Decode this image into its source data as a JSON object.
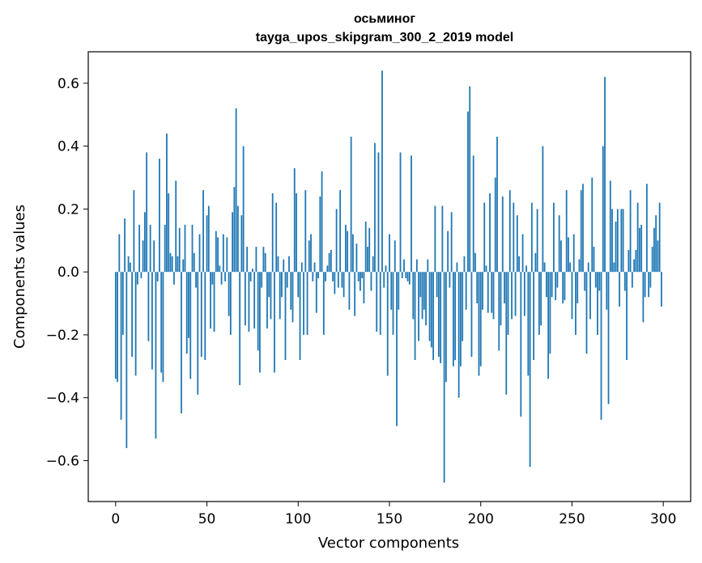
{
  "chart_data": {
    "type": "bar",
    "title": "осьминог",
    "subtitle": "tayga_upos_skipgram_300_2_2019 model",
    "xlabel": "Vector components",
    "ylabel": "Components values",
    "xlim": [
      -15,
      315
    ],
    "ylim": [
      -0.73,
      0.7
    ],
    "xticks": [
      0,
      50,
      100,
      150,
      200,
      250,
      300
    ],
    "xtick_labels": [
      "0",
      "50",
      "100",
      "150",
      "200",
      "250",
      "300"
    ],
    "yticks": [
      -0.6,
      -0.4,
      -0.2,
      0.0,
      0.2,
      0.4,
      0.6
    ],
    "ytick_labels": [
      "−0.6",
      "−0.4",
      "−0.2",
      "0.0",
      "0.2",
      "0.4",
      "0.6"
    ],
    "grid": false,
    "bar_color": "#1f77b4",
    "values": [
      -0.34,
      -0.35,
      0.12,
      -0.47,
      -0.2,
      0.17,
      -0.56,
      0.05,
      0.03,
      -0.27,
      0.26,
      -0.33,
      -0.04,
      0.15,
      -0.02,
      0.1,
      0.19,
      0.38,
      -0.22,
      0.15,
      -0.31,
      0.1,
      -0.53,
      -0.03,
      0.36,
      -0.32,
      -0.35,
      0.15,
      0.44,
      0.25,
      0.06,
      0.05,
      -0.04,
      0.29,
      0.05,
      0.14,
      -0.45,
      0.04,
      0.15,
      -0.26,
      -0.21,
      -0.34,
      0.15,
      0.06,
      -0.05,
      -0.39,
      0.12,
      -0.27,
      0.26,
      -0.28,
      0.18,
      0.21,
      -0.18,
      -0.04,
      -0.19,
      0.13,
      0.11,
      0.02,
      -0.04,
      0.12,
      -0.03,
      0.11,
      -0.14,
      -0.2,
      0.19,
      0.27,
      0.52,
      0.21,
      -0.36,
      0.18,
      0.4,
      -0.17,
      0.08,
      -0.19,
      -0.03,
      0.01,
      -0.18,
      0.08,
      -0.25,
      -0.32,
      -0.05,
      0.08,
      0.06,
      -0.18,
      -0.08,
      -0.15,
      0.25,
      -0.32,
      0.22,
      0.05,
      -0.15,
      -0.08,
      0.04,
      -0.28,
      -0.05,
      0.05,
      -0.12,
      -0.16,
      0.33,
      0.25,
      -0.08,
      -0.28,
      0.03,
      -0.2,
      0.26,
      -0.2,
      0.1,
      0.12,
      -0.03,
      0.03,
      -0.13,
      -0.02,
      0.24,
      0.32,
      -0.2,
      -0.03,
      0.02,
      0.06,
      0.07,
      -0.03,
      -0.07,
      0.2,
      -0.05,
      0.26,
      -0.05,
      -0.08,
      0.15,
      0.13,
      -0.12,
      0.43,
      0.12,
      -0.14,
      0.09,
      -0.03,
      -0.06,
      -0.02,
      -0.1,
      0.16,
      0.08,
      0.14,
      -0.06,
      0.05,
      0.41,
      -0.19,
      0.38,
      -0.2,
      0.64,
      -0.05,
      0.02,
      -0.33,
      0.12,
      -0.12,
      -0.2,
      0.1,
      -0.49,
      -0.12,
      0.38,
      -0.02,
      0.04,
      -0.02,
      -0.03,
      -0.04,
      0.37,
      -0.15,
      -0.28,
      0.04,
      -0.22,
      -0.08,
      -0.15,
      -0.12,
      -0.17,
      0.04,
      -0.22,
      -0.24,
      -0.28,
      0.21,
      -0.08,
      -0.27,
      -0.29,
      0.21,
      -0.67,
      -0.35,
      0.13,
      -0.05,
      0.19,
      -0.3,
      -0.28,
      0.03,
      -0.4,
      -0.3,
      -0.22,
      0.05,
      -0.12,
      0.51,
      0.59,
      -0.27,
      0.37,
      0.06,
      -0.1,
      -0.33,
      -0.3,
      -0.12,
      0.22,
      0.02,
      -0.13,
      0.25,
      -0.13,
      -0.15,
      0.3,
      0.43,
      -0.25,
      -0.17,
      0.24,
      -0.1,
      -0.39,
      -0.2,
      0.26,
      -0.15,
      0.22,
      -0.14,
      0.18,
      0.05,
      -0.46,
      0.12,
      -0.14,
      0.02,
      -0.33,
      -0.62,
      0.22,
      -0.28,
      0.06,
      0.2,
      -0.2,
      -0.17,
      0.4,
      0.03,
      -0.08,
      -0.34,
      -0.26,
      -0.08,
      0.22,
      -0.09,
      -0.05,
      0.18,
      0.1,
      -0.1,
      -0.09,
      0.26,
      0.11,
      0.03,
      -0.15,
      0.12,
      -0.2,
      -0.1,
      0.04,
      0.26,
      0.28,
      -0.06,
      -0.26,
      0.03,
      -0.15,
      0.3,
      0.08,
      -0.05,
      -0.2,
      -0.06,
      -0.47,
      0.4,
      0.62,
      -0.12,
      -0.42,
      0.29,
      0.2,
      0.03,
      0.16,
      0.2,
      -0.11,
      0.2,
      0.2,
      -0.06,
      -0.28,
      0.07,
      0.26,
      -0.05,
      0.04,
      0.07,
      0.22,
      0.14,
      0.15,
      -0.16,
      -0.08,
      0.28,
      -0.08,
      -0.05,
      0.08,
      0.14,
      0.18,
      0.1,
      0.22,
      -0.11
    ]
  }
}
